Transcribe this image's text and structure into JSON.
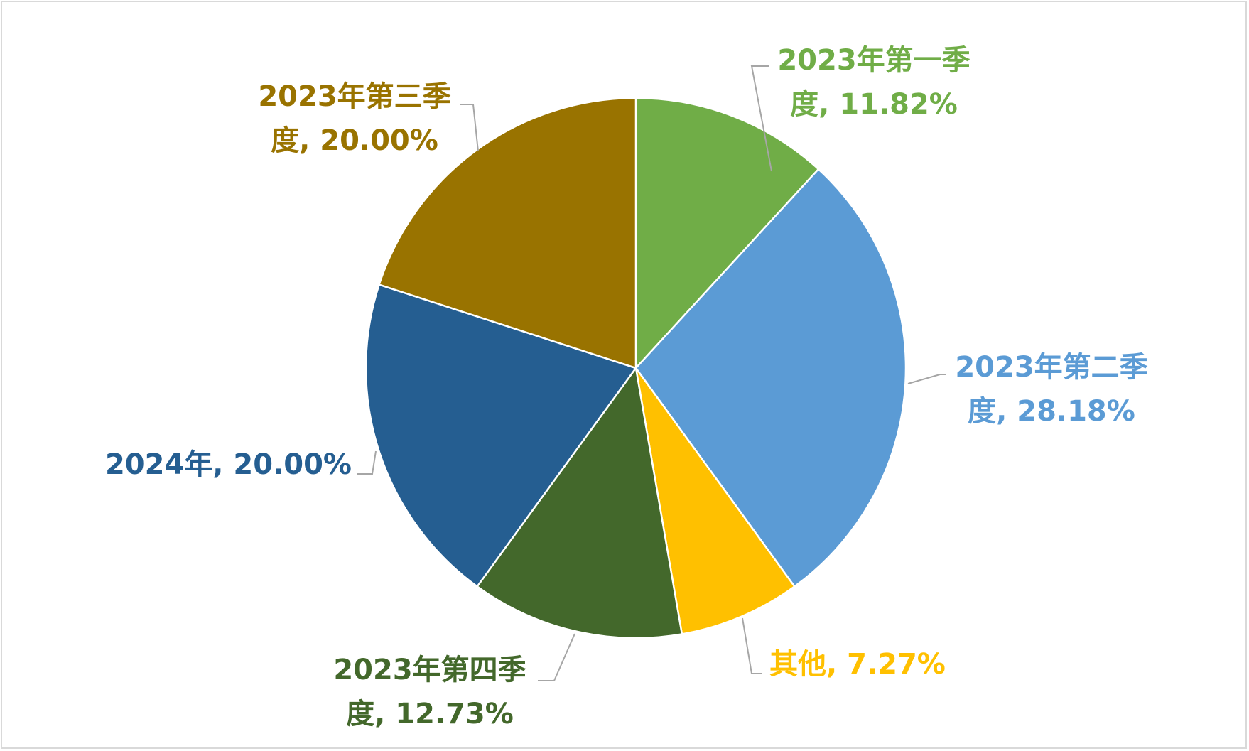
{
  "chart_data": {
    "type": "pie",
    "title": "",
    "start_angle_deg": 0,
    "direction": "clockwise",
    "legend": "none",
    "label_position": "outside-with-leader-lines",
    "slices": [
      {
        "name": "2023年第一季度",
        "value": 11.82,
        "value_label": "11.82%",
        "color": "#70ad47",
        "label_lines": [
          "2023年第一季",
          "度, 11.82%"
        ]
      },
      {
        "name": "2023年第二季度",
        "value": 28.18,
        "value_label": "28.18%",
        "color": "#5b9bd5",
        "label_lines": [
          "2023年第二季",
          "度, 28.18%"
        ]
      },
      {
        "name": "其他",
        "value": 7.27,
        "value_label": "7.27%",
        "color": "#ffc000",
        "label_lines": [
          "其他, 7.27%"
        ]
      },
      {
        "name": "2023年第四季度",
        "value": 12.73,
        "value_label": "12.73%",
        "color": "#43682b",
        "label_lines": [
          "2023年第四季",
          "度, 12.73%"
        ]
      },
      {
        "name": "2024年",
        "value": 20.0,
        "value_label": "20.00%",
        "color": "#255e91",
        "label_lines": [
          "2024年, 20.00%"
        ]
      },
      {
        "name": "2023年第三季度",
        "value": 20.0,
        "value_label": "20.00%",
        "color": "#997300",
        "label_lines": [
          "2023年第三季",
          "度, 20.00%"
        ]
      }
    ]
  }
}
